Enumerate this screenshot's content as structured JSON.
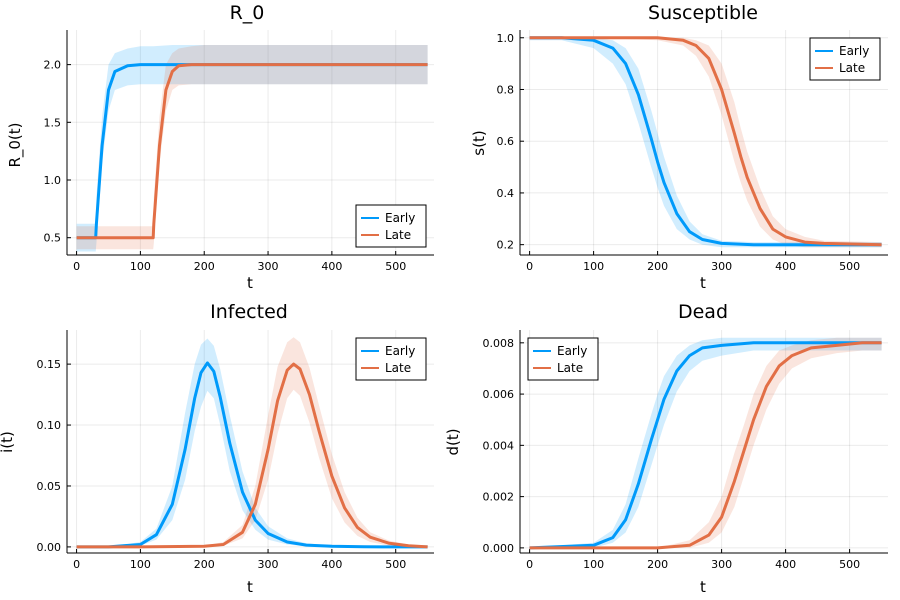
{
  "colors": {
    "early": "#009AFA",
    "late": "#E26F46",
    "legend_border": "#000000"
  },
  "chart_data": [
    {
      "type": "line",
      "title": "R_0",
      "xlabel": "t",
      "ylabel": "R_0(t)",
      "xlim": [
        -15,
        560
      ],
      "ylim": [
        0.35,
        2.3
      ],
      "xticks": [
        "0",
        "100",
        "200",
        "300",
        "400",
        "500"
      ],
      "yticks": [
        "0.5",
        "1.0",
        "1.5",
        "2.0"
      ],
      "grid": true,
      "legend": {
        "position": "bottom-right",
        "entries": [
          "Early",
          "Late"
        ]
      },
      "series": [
        {
          "name": "Early",
          "color": "#009AFA",
          "x": [
            0,
            30,
            31,
            40,
            50,
            60,
            80,
            100,
            120,
            150,
            200,
            300,
            400,
            500,
            550
          ],
          "y": [
            0.5,
            0.5,
            0.62,
            1.3,
            1.78,
            1.94,
            1.99,
            2.0,
            2.0,
            2.0,
            2.0,
            2.0,
            2.0,
            2.0,
            2.0
          ],
          "lower": [
            0.38,
            0.38,
            0.45,
            1.15,
            1.6,
            1.78,
            1.82,
            1.83,
            1.83,
            1.83,
            1.83,
            1.83,
            1.83,
            1.83,
            1.83
          ],
          "upper": [
            0.62,
            0.62,
            0.85,
            1.55,
            2.0,
            2.1,
            2.14,
            2.16,
            2.16,
            2.17,
            2.17,
            2.17,
            2.17,
            2.17,
            2.17
          ]
        },
        {
          "name": "Late",
          "color": "#E26F46",
          "x": [
            0,
            50,
            100,
            120,
            121,
            130,
            140,
            150,
            160,
            180,
            200,
            300,
            400,
            500,
            550
          ],
          "y": [
            0.5,
            0.5,
            0.5,
            0.5,
            0.62,
            1.3,
            1.78,
            1.94,
            1.99,
            2.0,
            2.0,
            2.0,
            2.0,
            2.0,
            2.0
          ],
          "lower": [
            0.4,
            0.4,
            0.4,
            0.4,
            0.45,
            1.15,
            1.6,
            1.78,
            1.82,
            1.83,
            1.83,
            1.83,
            1.83,
            1.83,
            1.83
          ],
          "upper": [
            0.6,
            0.6,
            0.6,
            0.6,
            0.85,
            1.55,
            2.0,
            2.1,
            2.14,
            2.16,
            2.17,
            2.17,
            2.17,
            2.17,
            2.17
          ]
        }
      ]
    },
    {
      "type": "line",
      "title": "Susceptible",
      "xlabel": "t",
      "ylabel": "s(t)",
      "xlim": [
        -15,
        560
      ],
      "ylim": [
        0.16,
        1.03
      ],
      "xticks": [
        "0",
        "100",
        "200",
        "300",
        "400",
        "500"
      ],
      "yticks": [
        "0.2",
        "0.4",
        "0.6",
        "0.8",
        "1.0"
      ],
      "grid": true,
      "legend": {
        "position": "top-right",
        "entries": [
          "Early",
          "Late"
        ]
      },
      "series": [
        {
          "name": "Early",
          "color": "#009AFA",
          "x": [
            0,
            50,
            100,
            130,
            150,
            170,
            190,
            200,
            210,
            230,
            250,
            270,
            300,
            350,
            400,
            550
          ],
          "y": [
            1.0,
            1.0,
            0.99,
            0.96,
            0.9,
            0.78,
            0.61,
            0.52,
            0.44,
            0.32,
            0.25,
            0.22,
            0.205,
            0.2,
            0.2,
            0.2
          ],
          "lower": [
            0.99,
            0.99,
            0.96,
            0.9,
            0.82,
            0.67,
            0.5,
            0.42,
            0.35,
            0.26,
            0.22,
            0.2,
            0.19,
            0.19,
            0.19,
            0.19
          ],
          "upper": [
            1.0,
            1.0,
            1.0,
            0.99,
            0.96,
            0.88,
            0.72,
            0.63,
            0.54,
            0.39,
            0.29,
            0.24,
            0.215,
            0.21,
            0.21,
            0.21
          ]
        },
        {
          "name": "Late",
          "color": "#E26F46",
          "x": [
            0,
            100,
            200,
            240,
            260,
            280,
            300,
            320,
            330,
            340,
            360,
            380,
            400,
            430,
            460,
            550
          ],
          "y": [
            1.0,
            1.0,
            1.0,
            0.99,
            0.97,
            0.92,
            0.8,
            0.63,
            0.54,
            0.46,
            0.34,
            0.26,
            0.23,
            0.21,
            0.205,
            0.2
          ],
          "lower": [
            1.0,
            1.0,
            0.99,
            0.97,
            0.93,
            0.85,
            0.7,
            0.52,
            0.44,
            0.37,
            0.27,
            0.22,
            0.2,
            0.19,
            0.19,
            0.19
          ],
          "upper": [
            1.0,
            1.0,
            1.0,
            1.0,
            0.99,
            0.97,
            0.9,
            0.75,
            0.65,
            0.56,
            0.42,
            0.31,
            0.26,
            0.23,
            0.215,
            0.21
          ]
        }
      ]
    },
    {
      "type": "line",
      "title": "Infected",
      "xlabel": "t",
      "ylabel": "i(t)",
      "xlim": [
        -15,
        560
      ],
      "ylim": [
        -0.005,
        0.178
      ],
      "xticks": [
        "0",
        "100",
        "200",
        "300",
        "400",
        "500"
      ],
      "yticks": [
        "0.00",
        "0.05",
        "0.10",
        "0.15"
      ],
      "grid": true,
      "legend": {
        "position": "top-right",
        "entries": [
          "Early",
          "Late"
        ]
      },
      "series": [
        {
          "name": "Early",
          "color": "#009AFA",
          "x": [
            0,
            50,
            100,
            125,
            150,
            170,
            185,
            195,
            205,
            215,
            225,
            240,
            260,
            280,
            300,
            330,
            360,
            400,
            450,
            550
          ],
          "y": [
            0.0,
            0.0,
            0.002,
            0.01,
            0.035,
            0.08,
            0.122,
            0.143,
            0.151,
            0.144,
            0.123,
            0.085,
            0.045,
            0.022,
            0.011,
            0.004,
            0.0015,
            0.0005,
            0.0001,
            0.0
          ],
          "lower": [
            0.0,
            0.0,
            0.001,
            0.006,
            0.022,
            0.055,
            0.095,
            0.115,
            0.128,
            0.122,
            0.1,
            0.062,
            0.03,
            0.014,
            0.006,
            0.002,
            0.0005,
            0.0002,
            0.0,
            0.0
          ],
          "upper": [
            0.0,
            0.0,
            0.004,
            0.015,
            0.05,
            0.11,
            0.15,
            0.166,
            0.171,
            0.165,
            0.146,
            0.108,
            0.062,
            0.032,
            0.017,
            0.007,
            0.003,
            0.001,
            0.0003,
            0.0
          ]
        },
        {
          "name": "Late",
          "color": "#E26F46",
          "x": [
            0,
            100,
            200,
            230,
            260,
            280,
            300,
            315,
            330,
            340,
            350,
            365,
            380,
            400,
            420,
            440,
            460,
            490,
            520,
            550
          ],
          "y": [
            0.0,
            0.0,
            0.0005,
            0.002,
            0.012,
            0.035,
            0.08,
            0.12,
            0.145,
            0.15,
            0.146,
            0.125,
            0.095,
            0.058,
            0.032,
            0.016,
            0.008,
            0.003,
            0.001,
            0.0
          ],
          "lower": [
            0.0,
            0.0,
            0.0,
            0.001,
            0.007,
            0.022,
            0.055,
            0.093,
            0.122,
            0.129,
            0.124,
            0.102,
            0.073,
            0.04,
            0.02,
            0.009,
            0.004,
            0.001,
            0.0003,
            0.0
          ],
          "upper": [
            0.0,
            0.0,
            0.001,
            0.004,
            0.018,
            0.05,
            0.108,
            0.148,
            0.168,
            0.172,
            0.168,
            0.147,
            0.116,
            0.076,
            0.045,
            0.024,
            0.012,
            0.005,
            0.002,
            0.001
          ]
        }
      ]
    },
    {
      "type": "line",
      "title": "Dead",
      "xlabel": "t",
      "ylabel": "d(t)",
      "xlim": [
        -15,
        560
      ],
      "ylim": [
        -0.0002,
        0.0085
      ],
      "xticks": [
        "0",
        "100",
        "200",
        "300",
        "400",
        "500"
      ],
      "yticks": [
        "0.000",
        "0.002",
        "0.004",
        "0.006",
        "0.008"
      ],
      "grid": true,
      "legend": {
        "position": "top-left",
        "entries": [
          "Early",
          "Late"
        ]
      },
      "series": [
        {
          "name": "Early",
          "color": "#009AFA",
          "x": [
            0,
            100,
            130,
            150,
            170,
            190,
            200,
            210,
            230,
            250,
            270,
            300,
            350,
            400,
            550
          ],
          "y": [
            0.0,
            0.0001,
            0.0004,
            0.0011,
            0.0025,
            0.0042,
            0.005,
            0.0058,
            0.0069,
            0.0075,
            0.0078,
            0.0079,
            0.008,
            0.008,
            0.008
          ],
          "lower": [
            0.0,
            0.0,
            0.0002,
            0.0006,
            0.0016,
            0.0032,
            0.004,
            0.0048,
            0.0061,
            0.0069,
            0.0073,
            0.0075,
            0.0077,
            0.0077,
            0.0077
          ],
          "upper": [
            0.0,
            0.0002,
            0.0007,
            0.0017,
            0.0035,
            0.0052,
            0.006,
            0.0067,
            0.0075,
            0.0079,
            0.0081,
            0.0082,
            0.0082,
            0.0082,
            0.0082
          ]
        },
        {
          "name": "Late",
          "color": "#E26F46",
          "x": [
            0,
            200,
            250,
            280,
            300,
            320,
            335,
            350,
            370,
            390,
            410,
            440,
            480,
            520,
            550
          ],
          "y": [
            0.0,
            0.0,
            0.0001,
            0.0005,
            0.0012,
            0.0026,
            0.0038,
            0.005,
            0.0063,
            0.0071,
            0.0075,
            0.0078,
            0.0079,
            0.008,
            0.008
          ],
          "lower": [
            0.0,
            0.0,
            0.0,
            0.0002,
            0.0006,
            0.0016,
            0.0028,
            0.004,
            0.0054,
            0.0064,
            0.007,
            0.0074,
            0.0076,
            0.0077,
            0.0077
          ],
          "upper": [
            0.0,
            0.0,
            0.0003,
            0.001,
            0.002,
            0.0037,
            0.0048,
            0.006,
            0.0071,
            0.0077,
            0.0079,
            0.0081,
            0.0082,
            0.0082,
            0.0082
          ]
        }
      ]
    }
  ]
}
